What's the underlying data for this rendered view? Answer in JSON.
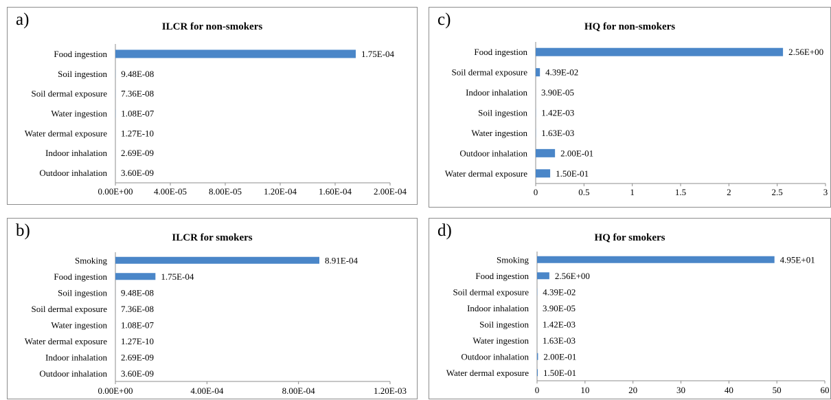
{
  "chart_data": [
    {
      "panel_label": "a)",
      "type": "bar",
      "orientation": "horizontal",
      "title": "ILCR for non-smokers",
      "categories": [
        "Food ingestion",
        "Soil ingestion",
        "Soil dermal exposure",
        "Water ingestion",
        "Water dermal exposure",
        "Indoor inhalation",
        "Outdoor inhalation"
      ],
      "values": [
        0.000175,
        9.48e-08,
        7.36e-08,
        1.08e-07,
        1.27e-10,
        2.69e-09,
        3.6e-09
      ],
      "data_labels": [
        "1.75E-04",
        "9.48E-08",
        "7.36E-08",
        "1.08E-07",
        "1.27E-10",
        "2.69E-09",
        "3.60E-09"
      ],
      "xlim": [
        0,
        0.0002
      ],
      "xticks": [
        0,
        4e-05,
        8e-05,
        0.00012,
        0.00016,
        0.0002
      ],
      "xtick_labels": [
        "0.00E+00",
        "4.00E-05",
        "8.00E-05",
        "1.20E-04",
        "1.60E-04",
        "2.00E-04"
      ],
      "bar_color": "#4a86c8",
      "grid": false,
      "xlabel": "",
      "ylabel": ""
    },
    {
      "panel_label": "b)",
      "type": "bar",
      "orientation": "horizontal",
      "title": "ILCR for smokers",
      "categories": [
        "Smoking",
        "Food ingestion",
        "Soil ingestion",
        "Soil dermal exposure",
        "Water ingestion",
        "Water dermal exposure",
        "Indoor inhalation",
        "Outdoor inhalation"
      ],
      "values": [
        0.000891,
        0.000175,
        9.48e-08,
        7.36e-08,
        1.08e-07,
        1.27e-10,
        2.69e-09,
        3.6e-09
      ],
      "data_labels": [
        "8.91E-04",
        "1.75E-04",
        "9.48E-08",
        "7.36E-08",
        "1.08E-07",
        "1.27E-10",
        "2.69E-09",
        "3.60E-09"
      ],
      "xlim": [
        0,
        0.0012
      ],
      "xticks": [
        0,
        0.0004,
        0.0008,
        0.0012
      ],
      "xtick_labels": [
        "0.00E+00",
        "4.00E-04",
        "8.00E-04",
        "1.20E-03"
      ],
      "bar_color": "#4a86c8",
      "grid": false,
      "xlabel": "",
      "ylabel": ""
    },
    {
      "panel_label": "c)",
      "type": "bar",
      "orientation": "horizontal",
      "title": "HQ for non-smokers",
      "categories": [
        "Food ingestion",
        "Soil dermal exposure",
        "Indoor inhalation",
        "Soil ingestion",
        "Water ingestion",
        "Outdoor inhalation",
        "Water dermal exposure"
      ],
      "values": [
        2.56,
        0.0439,
        3.9e-05,
        0.00142,
        0.00163,
        0.2,
        0.15
      ],
      "data_labels": [
        "2.56E+00",
        "4.39E-02",
        "3.90E-05",
        "1.42E-03",
        "1.63E-03",
        "2.00E-01",
        "1.50E-01"
      ],
      "xlim": [
        0,
        3
      ],
      "xticks": [
        0,
        0.5,
        1,
        1.5,
        2,
        2.5,
        3
      ],
      "xtick_labels": [
        "0",
        "0.5",
        "1",
        "1.5",
        "2",
        "2.5",
        "3"
      ],
      "bar_color": "#4a86c8",
      "grid": false,
      "xlabel": "",
      "ylabel": ""
    },
    {
      "panel_label": "d)",
      "type": "bar",
      "orientation": "horizontal",
      "title": "HQ for smokers",
      "categories": [
        "Smoking",
        "Food ingestion",
        "Soil dermal exposure",
        "Indoor inhalation",
        "Soil ingestion",
        "Water ingestion",
        "Outdoor inhalation",
        "Water dermal exposure"
      ],
      "values": [
        49.5,
        2.56,
        0.0439,
        3.9e-05,
        0.00142,
        0.00163,
        0.2,
        0.15
      ],
      "data_labels": [
        "4.95E+01",
        "2.56E+00",
        "4.39E-02",
        "3.90E-05",
        "1.42E-03",
        "1.63E-03",
        "2.00E-01",
        "1.50E-01"
      ],
      "xlim": [
        0,
        60
      ],
      "xticks": [
        0,
        10,
        20,
        30,
        40,
        50,
        60
      ],
      "xtick_labels": [
        "0",
        "10",
        "20",
        "30",
        "40",
        "50",
        "60"
      ],
      "bar_color": "#4a86c8",
      "grid": false,
      "xlabel": "",
      "ylabel": ""
    }
  ]
}
